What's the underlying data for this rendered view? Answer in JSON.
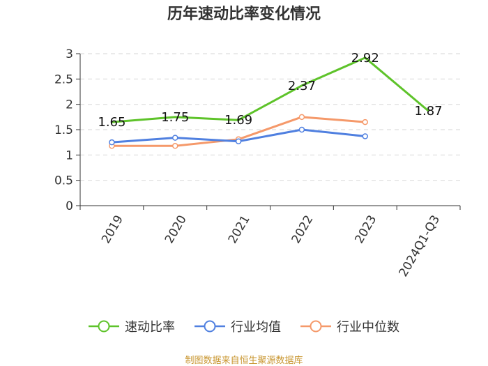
{
  "chart_data": {
    "type": "line",
    "title": "历年速动比率变化情况",
    "categories": [
      "2019",
      "2020",
      "2021",
      "2022",
      "2023",
      "2024Q1-Q3"
    ],
    "ylim": [
      0,
      3
    ],
    "yticks": [
      "0",
      "0.5",
      "1",
      "1.5",
      "2",
      "2.5",
      "3"
    ],
    "grid": "horizontal-dashed",
    "legend_position": "bottom",
    "series": [
      {
        "name": "速动比率",
        "color": "#5ec32a",
        "values": [
          1.65,
          1.75,
          1.69,
          2.37,
          2.92,
          1.87
        ],
        "labels": [
          "1.65",
          "1.75",
          "1.69",
          "2.37",
          "2.92",
          "1.87"
        ]
      },
      {
        "name": "行业均值",
        "color": "#5080e0",
        "values": [
          1.25,
          1.34,
          1.27,
          1.5,
          1.37,
          null
        ]
      },
      {
        "name": "行业中位数",
        "color": "#f5996a",
        "values": [
          1.18,
          1.18,
          1.31,
          1.75,
          1.65,
          null
        ]
      }
    ]
  },
  "source": "制图数据来自恒生聚源数据库"
}
